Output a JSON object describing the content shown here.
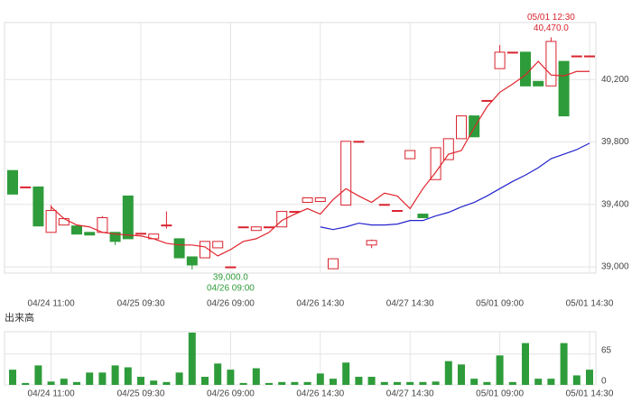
{
  "chart_data": {
    "type": "candlestick",
    "categories": [
      null,
      null,
      null,
      "04/24 11:00",
      null,
      null,
      null,
      null,
      null,
      null,
      "04/25 09:30",
      null,
      null,
      null,
      null,
      null,
      null,
      "04/26 09:00",
      null,
      null,
      null,
      null,
      null,
      null,
      "04/26 14:30",
      null,
      null,
      null,
      null,
      null,
      null,
      "04/27 14:30",
      null,
      null,
      null,
      null,
      null,
      null,
      "05/01 09:00",
      null,
      null,
      null,
      null,
      null,
      null,
      "05/01 14:30"
    ],
    "open": [
      39617,
      39512,
      39512,
      39221,
      39268,
      39262,
      39221,
      39221,
      39221,
      39454,
      39215,
      39180,
      39268,
      39180,
      39064,
      39058,
      39122,
      39000,
      39256,
      39233,
      39256,
      39256,
      39355,
      39413,
      39419,
      38988,
      39396,
      39804,
      39140,
      39400,
      39361,
      39693,
      39338,
      39559,
      39687,
      39821,
      39967,
      40066,
      40270,
      40375,
      40375,
      40188,
      40159,
      40316,
      40351,
      40351
    ],
    "high": [
      39617,
      39512,
      39512,
      39396,
      39309,
      39262,
      39221,
      39326,
      39221,
      39454,
      39215,
      39210,
      39355,
      39180,
      39064,
      39163,
      39163,
      39000,
      39256,
      39256,
      39256,
      39355,
      39355,
      39442,
      39442,
      39052,
      39804,
      39804,
      39175,
      39400,
      39361,
      39745,
      39338,
      39763,
      39821,
      39967,
      39967,
      40066,
      40420,
      40375,
      40375,
      40188,
      40470,
      40316,
      40351,
      40351
    ],
    "low": [
      39466,
      39512,
      39262,
      39221,
      39268,
      39210,
      39204,
      39221,
      39140,
      39180,
      39215,
      39180,
      39245,
      39058,
      38983,
      39058,
      39122,
      39000,
      39256,
      39233,
      39256,
      39256,
      39355,
      39413,
      39419,
      38988,
      39396,
      39804,
      39120,
      39400,
      39361,
      39693,
      39315,
      39559,
      39687,
      39821,
      39833,
      40066,
      40270,
      40375,
      40159,
      40159,
      40159,
      39967,
      40351,
      40351
    ],
    "close": [
      39466,
      39512,
      39262,
      39361,
      39309,
      39210,
      39204,
      39315,
      39163,
      39180,
      39215,
      39210,
      39268,
      39058,
      39012,
      39163,
      39163,
      39000,
      39256,
      39256,
      39256,
      39355,
      39355,
      39442,
      39442,
      39052,
      39804,
      39804,
      39169,
      39400,
      39361,
      39745,
      39315,
      39763,
      39821,
      39967,
      39833,
      40066,
      40375,
      40375,
      40159,
      40159,
      40444,
      39967,
      40351,
      40351
    ],
    "up_color": "#d9232e",
    "down_color": "#2e9c3a",
    "ma": [
      {
        "color": "#e0242c",
        "values": [
          null,
          null,
          null,
          39384,
          39309,
          39268,
          39256,
          39221,
          39210,
          39204,
          39198,
          39180,
          39151,
          39140,
          39140,
          39128,
          39070,
          39111,
          39163,
          39180,
          39221,
          39297,
          39338,
          39373,
          39338,
          39431,
          39501,
          39454,
          39413,
          39472,
          39454,
          39373,
          39501,
          39606,
          39722,
          39745,
          39891,
          40025,
          40118,
          40171,
          40229,
          40316,
          40229,
          40223,
          40252,
          40252
        ]
      },
      {
        "color": "#2222cc",
        "values": [
          null,
          null,
          null,
          null,
          null,
          null,
          null,
          null,
          null,
          null,
          null,
          null,
          null,
          null,
          null,
          null,
          null,
          null,
          null,
          null,
          null,
          null,
          null,
          null,
          39256,
          39239,
          39256,
          39280,
          39268,
          39268,
          39274,
          39297,
          39297,
          39326,
          39349,
          39384,
          39413,
          39454,
          39501,
          39547,
          39588,
          39635,
          39693,
          39722,
          39751,
          39792
        ]
      }
    ],
    "ylim": [
      38960,
      40565
    ],
    "yticks": [
      {
        "value": 39000,
        "label": "39,000"
      },
      {
        "value": 39400,
        "label": "39,400"
      },
      {
        "value": 39800,
        "label": "39,800"
      },
      {
        "value": 40200,
        "label": "40,200"
      }
    ],
    "grid": true,
    "annotations": [
      {
        "lines": [
          "05/01 12:30",
          "40,470.0"
        ],
        "color": "#d9232e",
        "index": 42,
        "value": 40470
      },
      {
        "lines": [
          "39,000.0",
          "04/26 09:00"
        ],
        "color": "#2e9c3a",
        "index": 17,
        "value": 39000
      }
    ],
    "volume": {
      "label": "出来高",
      "color": "#2e9c3a",
      "values": [
        32,
        4,
        41,
        7,
        13,
        6,
        26,
        26,
        41,
        37,
        17,
        9,
        6,
        26,
        110,
        17,
        45,
        32,
        4,
        35,
        4,
        6,
        6,
        6,
        24,
        13,
        47,
        17,
        17,
        6,
        6,
        6,
        6,
        7,
        50,
        43,
        13,
        6,
        62,
        6,
        88,
        13,
        13,
        88,
        20,
        32
      ],
      "ylim": [
        0,
        112
      ],
      "yticks": [
        0,
        65
      ]
    }
  }
}
